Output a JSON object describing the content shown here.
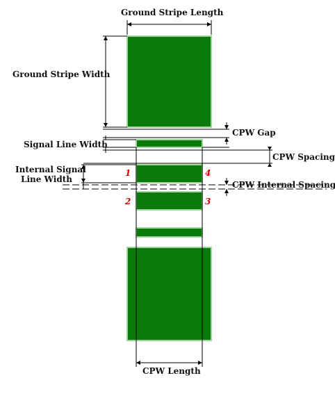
{
  "colors": {
    "metal_fill": "#0a7a0a",
    "metal_outline": "#9fd69f",
    "dimension_line": "#000000",
    "port_label": "#cc0000",
    "background": "#ffffff"
  },
  "labels": {
    "ground_stripe_length": "Ground  Stripe Length",
    "ground_stripe_width": "Ground Stripe Width",
    "cpw_gap": "CPW Gap",
    "signal_line_width": "Signal Line Width",
    "cpw_spacing": "CPW Spacing",
    "internal_signal_line_width_1": "Internal Signal",
    "internal_signal_line_width_2": "Line Width",
    "cpw_internal_spacing": "CPW Internal Spacing",
    "cpw_length": "CPW Length"
  },
  "ports": {
    "p1": "1",
    "p2": "2",
    "p3": "3",
    "p4": "4"
  }
}
